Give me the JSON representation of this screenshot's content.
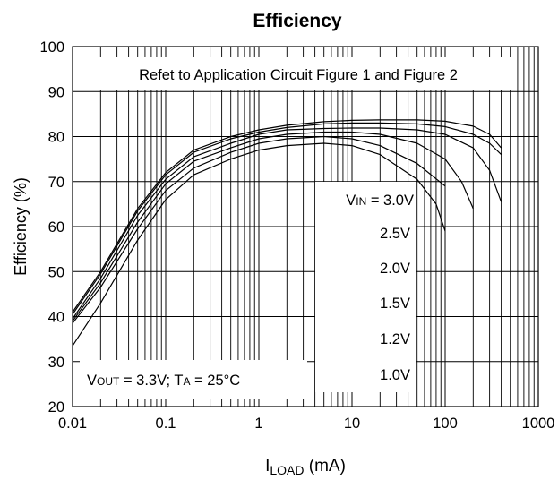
{
  "chart_data": {
    "type": "line",
    "title": "Efficiency",
    "xlabel": {
      "main": "I",
      "sub": "LOAD",
      "unit": " (mA)"
    },
    "ylabel": "Efficiency (%)",
    "x_scale": "log",
    "xlim": [
      0.01,
      1000
    ],
    "ylim": [
      20,
      100
    ],
    "grid": true,
    "x_ticks": [
      0.01,
      0.1,
      1,
      10,
      100,
      1000
    ],
    "x_tick_labels": [
      "0.01",
      "0.1",
      "1",
      "10",
      "100",
      "1000"
    ],
    "y_ticks": [
      20,
      30,
      40,
      50,
      60,
      70,
      80,
      90,
      100
    ],
    "y_tick_labels": [
      "20",
      "30",
      "40",
      "50",
      "60",
      "70",
      "80",
      "90",
      "100"
    ],
    "annotation_top": "Refet to Application Circuit Figure 1 and Figure 2",
    "annotation_conditions": {
      "vout_main": "V",
      "vout_sub": "OUT",
      "vout_rest": " = 3.3V; T",
      "ta_sub": "A",
      "ta_rest": " = 25°C"
    },
    "vin_prefix": {
      "main": "V",
      "sub": "IN",
      "rest": " = "
    },
    "series": [
      {
        "name": "3.0V",
        "x": [
          0.01,
          0.02,
          0.05,
          0.1,
          0.2,
          0.5,
          1,
          2,
          5,
          10,
          20,
          50,
          100,
          200,
          300,
          400
        ],
        "y": [
          41,
          50,
          64,
          72,
          77,
          80,
          81.5,
          82.5,
          83.3,
          83.6,
          83.7,
          83.7,
          83.4,
          82.3,
          80.5,
          77.5
        ]
      },
      {
        "name": "2.5V",
        "x": [
          0.01,
          0.02,
          0.05,
          0.1,
          0.2,
          0.5,
          1,
          2,
          5,
          10,
          20,
          50,
          100,
          200,
          300,
          400
        ],
        "y": [
          40.5,
          49.5,
          63.5,
          71.5,
          76.5,
          79.5,
          81,
          82,
          82.8,
          83,
          83,
          82.8,
          82.2,
          80.5,
          78.5,
          76
        ]
      },
      {
        "name": "2.0V",
        "x": [
          0.01,
          0.02,
          0.05,
          0.1,
          0.2,
          0.5,
          1,
          2,
          5,
          10,
          20,
          50,
          100,
          200,
          300,
          400
        ],
        "y": [
          39.5,
          48.5,
          62.5,
          70.5,
          75.5,
          78.5,
          80.5,
          81.5,
          81.8,
          81.9,
          81.9,
          81.5,
          80.5,
          77.5,
          72.5,
          65.5
        ]
      },
      {
        "name": "1.5V",
        "x": [
          0.01,
          0.02,
          0.05,
          0.1,
          0.2,
          0.5,
          1,
          2,
          5,
          10,
          20,
          50,
          100,
          150,
          200
        ],
        "y": [
          39,
          47.5,
          61,
          69.5,
          74.5,
          77.5,
          79.5,
          80.5,
          81,
          81,
          80.5,
          78.5,
          75,
          70,
          64
        ]
      },
      {
        "name": "1.2V",
        "x": [
          0.01,
          0.02,
          0.05,
          0.1,
          0.2,
          0.5,
          1,
          2,
          5,
          10,
          20,
          50,
          100
        ],
        "y": [
          38.5,
          46.5,
          59.5,
          68,
          73,
          76.5,
          78.5,
          79.5,
          80,
          79.5,
          78,
          74,
          69
        ]
      },
      {
        "name": "1.0V",
        "x": [
          0.01,
          0.02,
          0.05,
          0.1,
          0.2,
          0.5,
          1,
          2,
          5,
          10,
          20,
          50,
          80,
          100
        ],
        "y": [
          33.5,
          43,
          57,
          66,
          71.5,
          75,
          77,
          78,
          78.5,
          78,
          76,
          70.5,
          65,
          59
        ]
      }
    ]
  }
}
